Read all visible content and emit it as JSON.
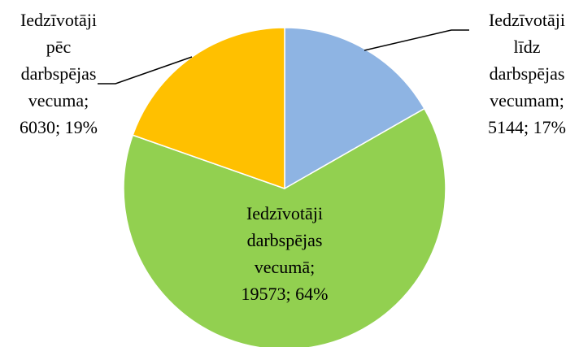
{
  "chart_data": {
    "type": "pie",
    "categories": [
      "Iedzīvotāji līdz darbspējas vecumam;",
      "Iedzīvotāji darbspējas vecumā;",
      "Iedzīvotāji pēc darbspējas vecuma;"
    ],
    "values": [
      5144,
      19573,
      6030
    ],
    "value_labels": [
      "5144; 17%",
      "19573; 64%",
      "6030; 19%"
    ],
    "colors": [
      "#8eb4e3",
      "#92d050",
      "#ffc000"
    ]
  }
}
